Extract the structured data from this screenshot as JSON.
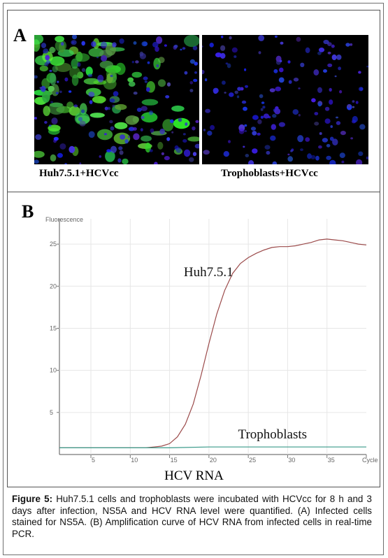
{
  "panel_a": {
    "letter": "A",
    "left_label": "Huh7.5.1+HCVcc",
    "right_label": "Trophoblasts+HCVcc"
  },
  "panel_b": {
    "letter": "B",
    "xcaption": "HCV RNA"
  },
  "chart_data": {
    "type": "line",
    "ylabel": "Fluorescence",
    "xlabel": "Cycle",
    "x_ticks": [
      "5",
      "10",
      "15",
      "20",
      "25",
      "30",
      "35",
      "Cycle"
    ],
    "y_ticks": [
      "5",
      "10",
      "15",
      "20",
      "25"
    ],
    "xlim": [
      1,
      40
    ],
    "ylim": [
      0,
      28
    ],
    "grid": true,
    "series": [
      {
        "name": "Huh7.5.1",
        "color": "#9b4a4a",
        "x": [
          1,
          2,
          3,
          4,
          5,
          6,
          7,
          8,
          9,
          10,
          11,
          12,
          13,
          14,
          15,
          16,
          17,
          18,
          19,
          20,
          21,
          22,
          23,
          24,
          25,
          26,
          27,
          28,
          29,
          30,
          31,
          32,
          33,
          34,
          35,
          36,
          37,
          38,
          39,
          40
        ],
        "y": [
          0.8,
          0.8,
          0.8,
          0.8,
          0.8,
          0.8,
          0.8,
          0.8,
          0.8,
          0.8,
          0.8,
          0.8,
          0.9,
          1.0,
          1.3,
          2.1,
          3.6,
          6.0,
          9.4,
          13.2,
          16.7,
          19.5,
          21.5,
          22.7,
          23.4,
          23.9,
          24.3,
          24.6,
          24.7,
          24.7,
          24.8,
          25.0,
          25.2,
          25.5,
          25.6,
          25.5,
          25.4,
          25.2,
          25.0,
          24.9
        ]
      },
      {
        "name": "Trophoblasts",
        "color": "#3a9a8a",
        "x": [
          1,
          5,
          10,
          15,
          20,
          25,
          30,
          35,
          40
        ],
        "y": [
          0.8,
          0.8,
          0.8,
          0.8,
          0.9,
          0.9,
          0.9,
          0.9,
          0.9
        ]
      }
    ]
  },
  "caption": {
    "label": "Figure 5:",
    "text": " Huh7.5.1 cells and trophoblasts were incubated with HCVcc for 8 h and 3 days after infection, NS5A and HCV RNA level were quantified. (A) Infected cells stained for NS5A. (B) Amplification curve of HCV RNA from infected cells in real-time PCR."
  },
  "colors": {
    "microscopy_background": "#000000",
    "ns5a_stain": "#3cb83c",
    "nuclei_stain": "#2a2ad8"
  }
}
